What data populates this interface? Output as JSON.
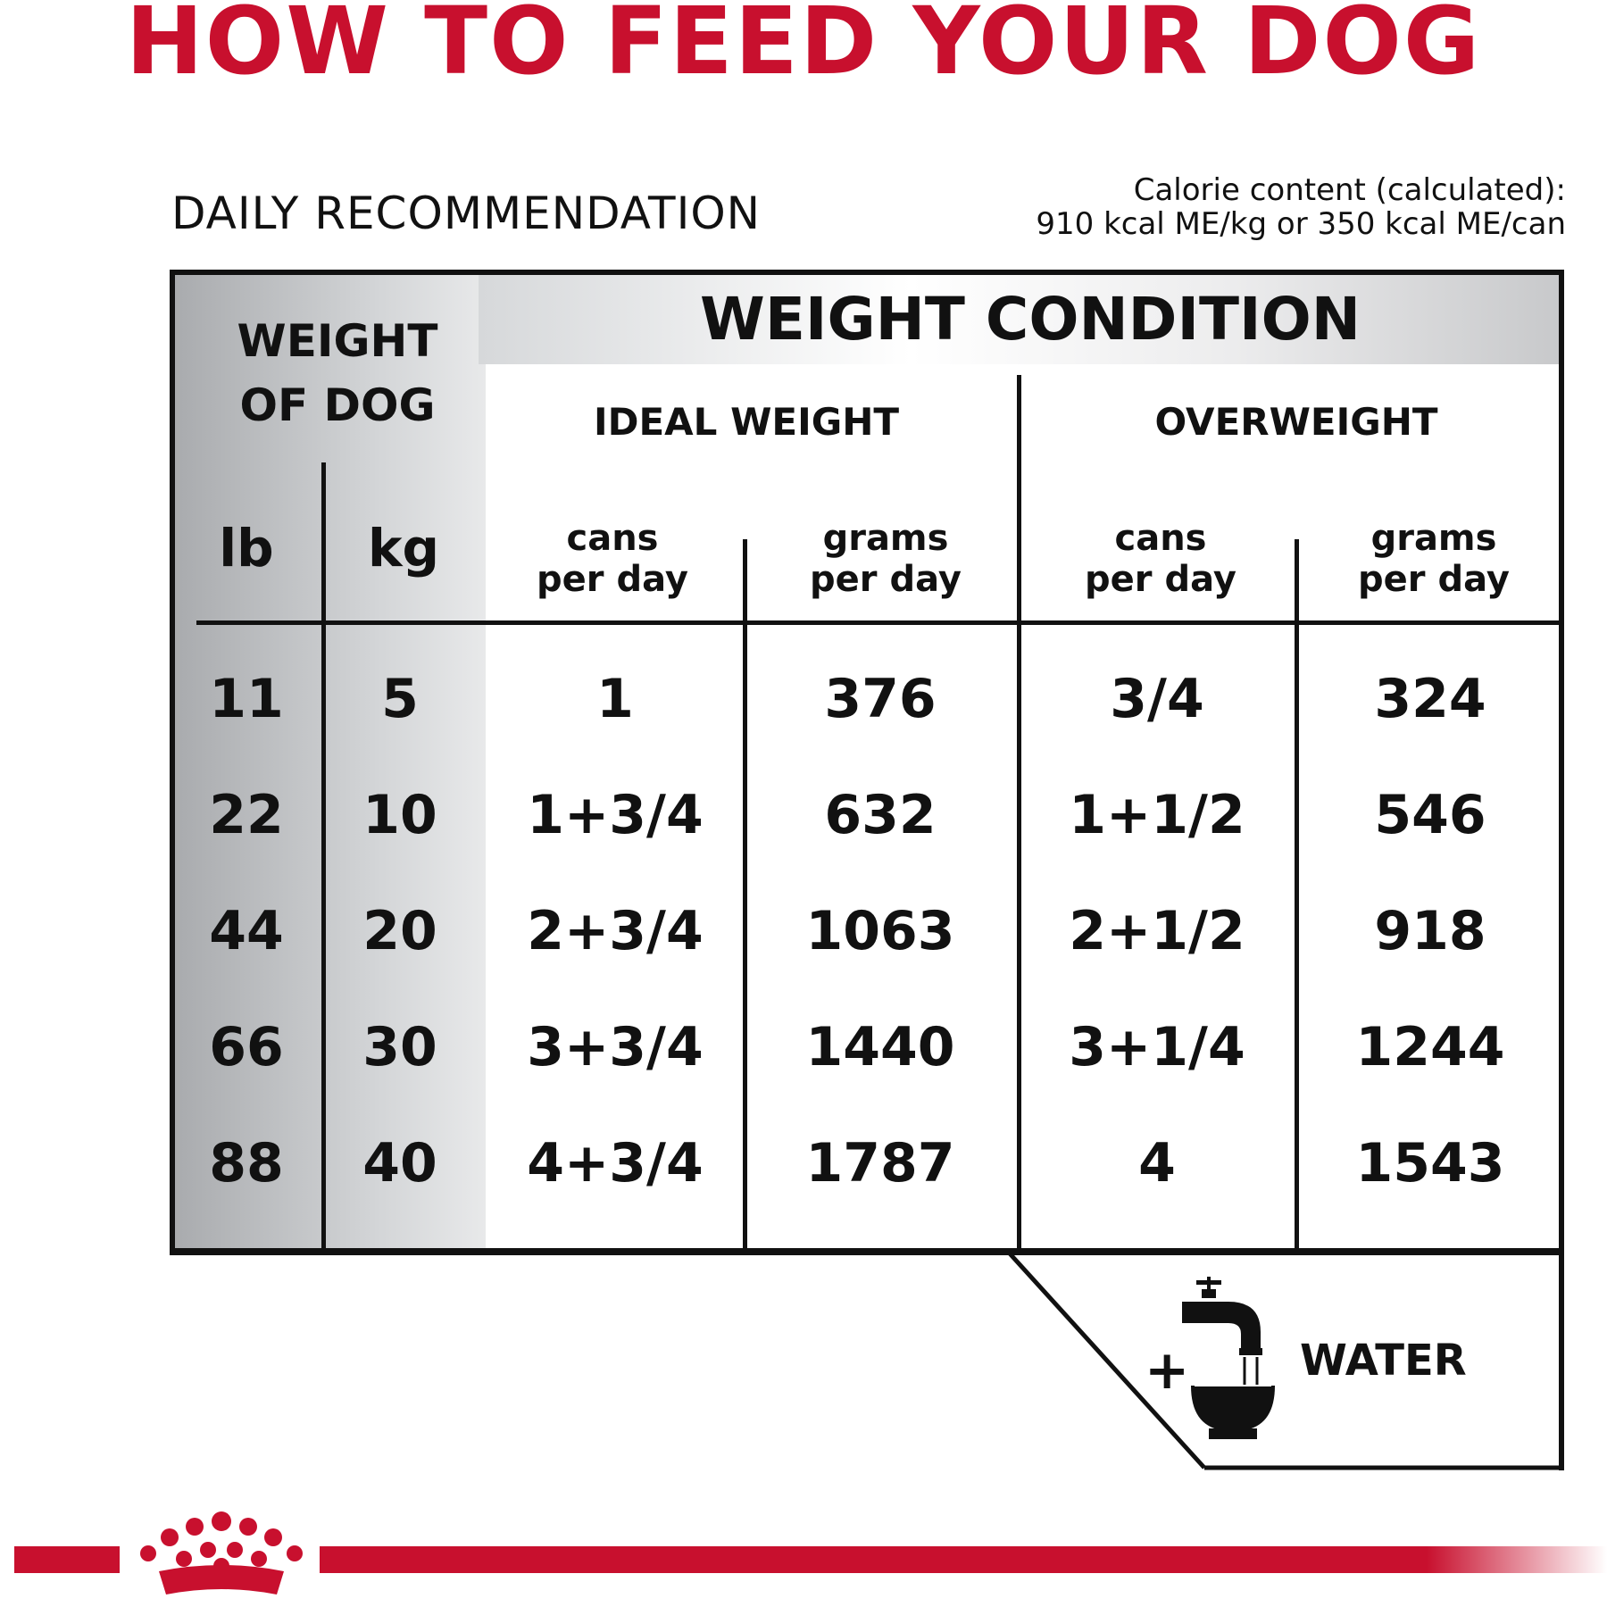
{
  "title": "HOW TO FEED YOUR DOG",
  "daily_recommendation": "DAILY RECOMMENDATION",
  "calorie": {
    "line1": "Calorie content (calculated):",
    "line2": "910 kcal ME/kg or 350 kcal ME/can"
  },
  "table": {
    "weight_of_dog_line1": "WEIGHT",
    "weight_of_dog_line2": "OF DOG",
    "weight_condition": "WEIGHT CONDITION",
    "ideal_weight": "IDEAL WEIGHT",
    "overweight": "OVERWEIGHT",
    "col_lb": "lb",
    "col_kg": "kg",
    "cans_line1": "cans",
    "grams_line1": "grams",
    "per_day": "per day",
    "rows": [
      [
        "11",
        "5",
        "1",
        "376",
        "3/4",
        "324"
      ],
      [
        "22",
        "10",
        "1+3/4",
        "632",
        "1+1/2",
        "546"
      ],
      [
        "44",
        "20",
        "2+3/4",
        "1063",
        "2+1/2",
        "918"
      ],
      [
        "66",
        "30",
        "3+3/4",
        "1440",
        "3+1/4",
        "1244"
      ],
      [
        "88",
        "40",
        "4+3/4",
        "1787",
        "4",
        "1543"
      ]
    ]
  },
  "water": {
    "plus": "+",
    "label": "WATER",
    "icon": "faucet-bowl-icon"
  },
  "brand": {
    "logo_icon": "crown-logo-icon",
    "accent_color": "#c8102e"
  }
}
